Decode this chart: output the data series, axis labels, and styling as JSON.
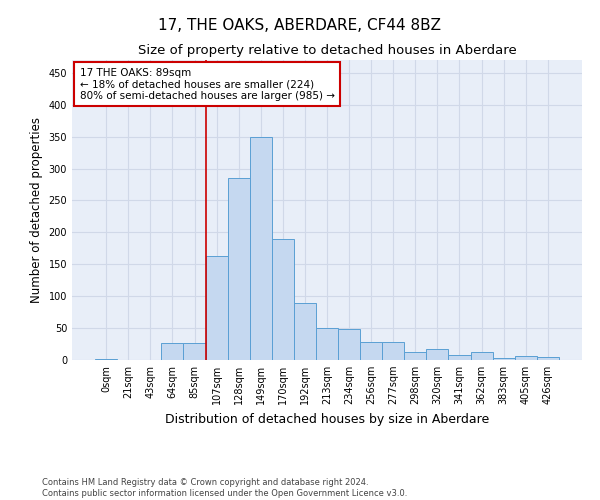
{
  "title": "17, THE OAKS, ABERDARE, CF44 8BZ",
  "subtitle": "Size of property relative to detached houses in Aberdare",
  "xlabel": "Distribution of detached houses by size in Aberdare",
  "ylabel": "Number of detached properties",
  "footer1": "Contains HM Land Registry data © Crown copyright and database right 2024.",
  "footer2": "Contains public sector information licensed under the Open Government Licence v3.0.",
  "bar_labels": [
    "0sqm",
    "21sqm",
    "43sqm",
    "64sqm",
    "85sqm",
    "107sqm",
    "128sqm",
    "149sqm",
    "170sqm",
    "192sqm",
    "213sqm",
    "234sqm",
    "256sqm",
    "277sqm",
    "298sqm",
    "320sqm",
    "341sqm",
    "362sqm",
    "383sqm",
    "405sqm",
    "426sqm"
  ],
  "bar_values": [
    2,
    0,
    0,
    27,
    27,
    163,
    285,
    350,
    190,
    90,
    50,
    48,
    28,
    28,
    13,
    18,
    8,
    12,
    3,
    7,
    5
  ],
  "bar_color": "#c5d8f0",
  "bar_edge_color": "#5a9fd4",
  "grid_color": "#d0d8e8",
  "bg_color": "#e8eef8",
  "annotation_line1": "17 THE OAKS: 89sqm",
  "annotation_line2": "← 18% of detached houses are smaller (224)",
  "annotation_line3": "80% of semi-detached houses are larger (985) →",
  "vline_x": 4.5,
  "annotation_box_color": "#ffffff",
  "annotation_box_edge": "#cc0000",
  "vline_color": "#cc0000",
  "ylim": [
    0,
    470
  ],
  "yticks": [
    0,
    50,
    100,
    150,
    200,
    250,
    300,
    350,
    400,
    450
  ],
  "title_fontsize": 11,
  "subtitle_fontsize": 9.5,
  "tick_fontsize": 7,
  "ylabel_fontsize": 8.5,
  "xlabel_fontsize": 9
}
